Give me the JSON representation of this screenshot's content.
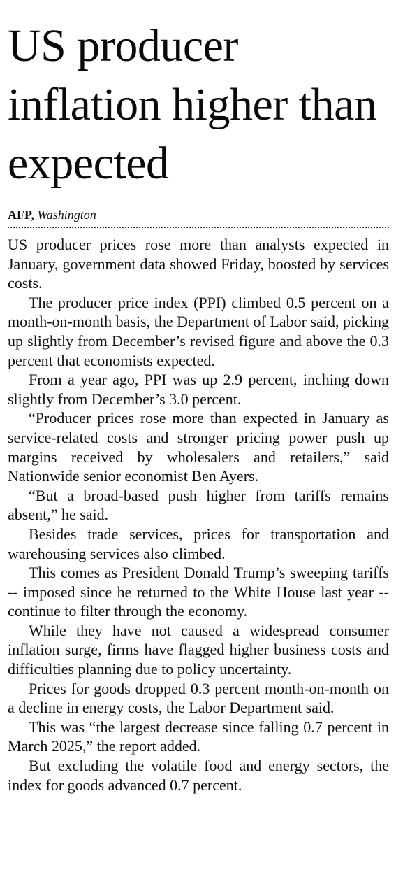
{
  "article": {
    "headline": "US producer inflation higher than expected",
    "byline": {
      "agency": "AFP,",
      "dateline": "Washington"
    },
    "paragraphs": [
      "US producer prices rose more than analysts expected in January, government data showed Friday, boosted by services costs.",
      "The producer price index (PPI) climbed 0.5 percent on a month-on-month basis, the Department of Labor said, picking up slightly from December’s revised figure and above the 0.3 percent that economists expected.",
      "From a year ago, PPI was up 2.9 percent, inching down slightly from December’s 3.0 percent.",
      "“Producer prices rose more than expected in January as service-related costs and stronger pricing power push up margins received by wholesalers and retailers,” said Nationwide senior economist Ben Ayers.",
      "“But a broad-based push higher from tariffs remains absent,” he said.",
      "Besides trade services, prices for transportation and warehousing services also climbed.",
      "This comes as President Donald Trump’s sweeping tariffs -- imposed since he returned to the White House last year -- continue to filter through the economy.",
      "While they have not caused a widespread consumer inflation surge, firms have flagged higher business costs and difficulties planning due to policy uncertainty.",
      "Prices for goods dropped 0.3 percent month-on-month on a decline in energy costs, the Labor Department said.",
      "This was “the largest decrease since falling 0.7 percent in March 2025,” the report added.",
      "But excluding the volatile food and energy sectors, the index for goods advanced 0.7 percent."
    ]
  }
}
